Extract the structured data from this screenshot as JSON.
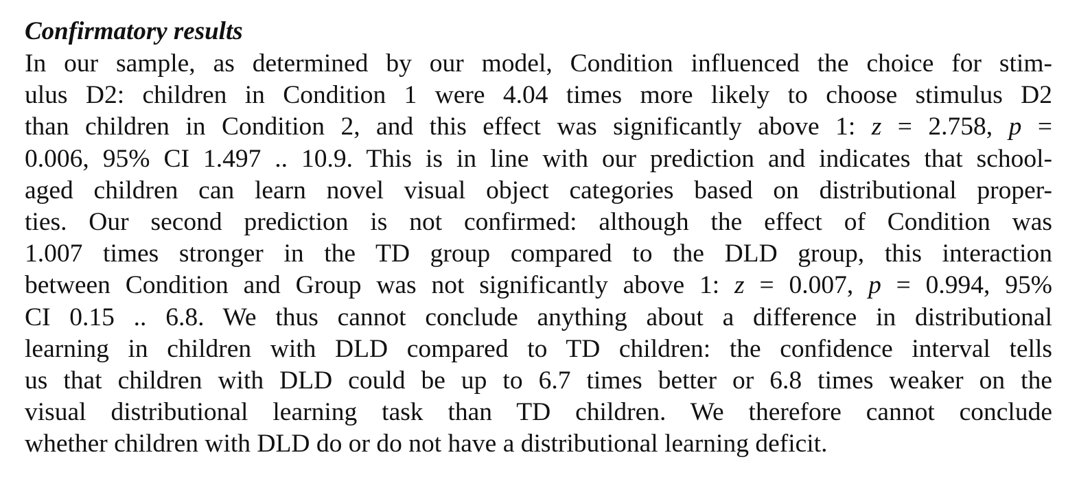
{
  "section": {
    "heading": "Confirmatory results",
    "lines": [
      "In our sample, as determined by our model, Condition influenced the choice for stim-",
      "ulus D2: children in Condition 1 were 4.04 times more likely to choose stimulus D2",
      "than children in Condition 2, and this effect was significantly above 1: z = 2.758, p =",
      "0.006, 95% CI 1.497 .. 10.9. This is in line with our prediction and indicates that school-",
      "aged children can learn novel visual object categories based on distributional proper-",
      "ties. Our second prediction is not confirmed: although the effect of Condition was",
      "1.007 times stronger in the TD group compared to the DLD group, this interaction",
      "between Condition and Group was not significantly above 1: z = 0.007, p = 0.994, 95%",
      "CI 0.15 .. 6.8. We thus cannot conclude anything about a difference in distributional",
      "learning in children with DLD compared to TD children: the confidence interval tells",
      "us that children with DLD could be up to 6.7 times better or 6.8 times weaker on the",
      "visual distributional learning task than TD children. We therefore cannot conclude",
      "whether children with DLD do or do not have a distributional learning deficit."
    ]
  }
}
